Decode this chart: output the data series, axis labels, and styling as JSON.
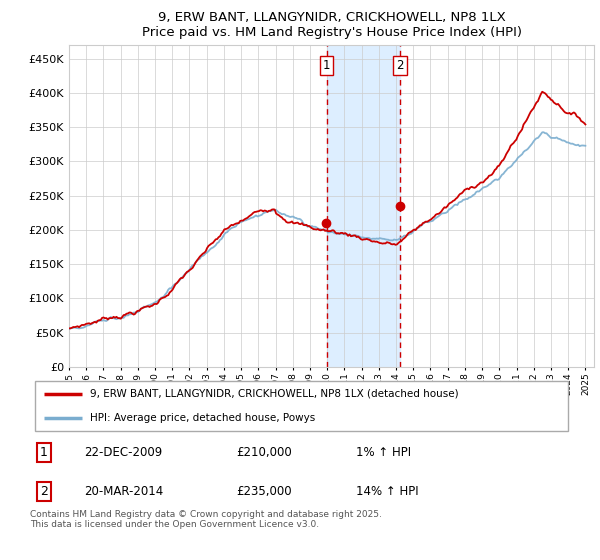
{
  "title": "9, ERW BANT, LLANGYNIDR, CRICKHOWELL, NP8 1LX",
  "subtitle": "Price paid vs. HM Land Registry's House Price Index (HPI)",
  "legend_line1": "9, ERW BANT, LLANGYNIDR, CRICKHOWELL, NP8 1LX (detached house)",
  "legend_line2": "HPI: Average price, detached house, Powys",
  "transaction1_date": "22-DEC-2009",
  "transaction1_price": 210000,
  "transaction1_hpi": "1% ↑ HPI",
  "transaction2_date": "20-MAR-2014",
  "transaction2_price": 235000,
  "transaction2_hpi": "14% ↑ HPI",
  "footer": "Contains HM Land Registry data © Crown copyright and database right 2025.\nThis data is licensed under the Open Government Licence v3.0.",
  "red_color": "#cc0000",
  "blue_color": "#7aadcf",
  "shade_color": "#ddeeff",
  "vline_color": "#cc0000",
  "ylim_min": 0,
  "ylim_max": 470000,
  "xlim_min": 1995,
  "xlim_max": 2025.5,
  "t1_x": 2009.97,
  "t2_x": 2014.22,
  "background_color": "#ffffff",
  "grid_color": "#cccccc"
}
